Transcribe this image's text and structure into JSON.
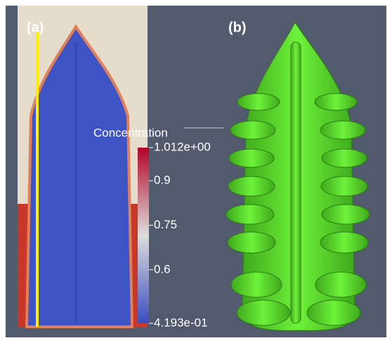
{
  "panels": [
    {
      "label": "(a)"
    },
    {
      "label": "(b)"
    }
  ],
  "colorbar": {
    "title": "Concentration",
    "range": [
      0.4193,
      1.012
    ],
    "ticks": [
      {
        "value": 1.012,
        "label": "1.012e+00"
      },
      0.9,
      0.75,
      0.6,
      {
        "value": 0.4193,
        "label": "4.193e-01"
      }
    ]
  }
}
